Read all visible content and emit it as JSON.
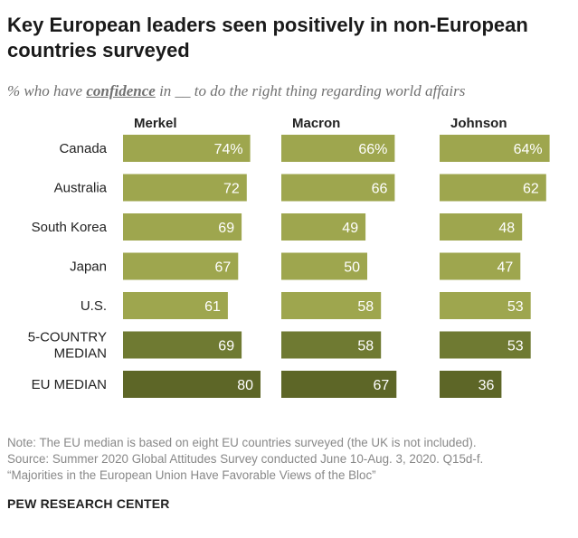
{
  "title": "Key European leaders seen positively in non-European countries surveyed",
  "subtitle": {
    "prefix": "% who have ",
    "keyword": "confidence",
    "suffix": " in __ to do the right thing regarding world affairs"
  },
  "chart_data": {
    "type": "bar",
    "orientation": "horizontal",
    "title": "Key European leaders seen positively in non-European countries surveyed",
    "categories": [
      "Canada",
      "Australia",
      "South Korea",
      "Japan",
      "U.S.",
      "5-COUNTRY MEDIAN",
      "EU MEDIAN"
    ],
    "category_label_lines": [
      [
        "Canada"
      ],
      [
        "Australia"
      ],
      [
        "South Korea"
      ],
      [
        "Japan"
      ],
      [
        "U.S."
      ],
      [
        "5-COUNTRY",
        "MEDIAN"
      ],
      [
        "EU MEDIAN"
      ]
    ],
    "series": [
      {
        "name": "Merkel",
        "values": [
          74,
          72,
          69,
          67,
          61,
          69,
          80
        ],
        "labels": [
          "74%",
          "72",
          "69",
          "67",
          "61",
          "69",
          "80"
        ]
      },
      {
        "name": "Macron",
        "values": [
          66,
          66,
          49,
          50,
          58,
          58,
          67
        ],
        "labels": [
          "66%",
          "66",
          "49",
          "50",
          "58",
          "58",
          "67"
        ]
      },
      {
        "name": "Johnson",
        "values": [
          64,
          62,
          48,
          47,
          53,
          53,
          36
        ],
        "labels": [
          "64%",
          "62",
          "48",
          "47",
          "53",
          "53",
          "36"
        ]
      }
    ],
    "xlim": [
      0,
      100
    ],
    "colors": {
      "country": "#9ea64e",
      "five_country_median": "#6f7a32",
      "eu_median": "#5d6627",
      "value_label": "#ffffff"
    }
  },
  "note": {
    "line1": "Note: The EU median is based on eight EU countries surveyed (the UK is not included).",
    "line2": "Source: Summer 2020 Global Attitudes Survey conducted June 10-Aug. 3, 2020. Q15d-f.",
    "line3": "“Majorities in the European Union Have Favorable Views of the Bloc”"
  },
  "source": "PEW RESEARCH CENTER"
}
